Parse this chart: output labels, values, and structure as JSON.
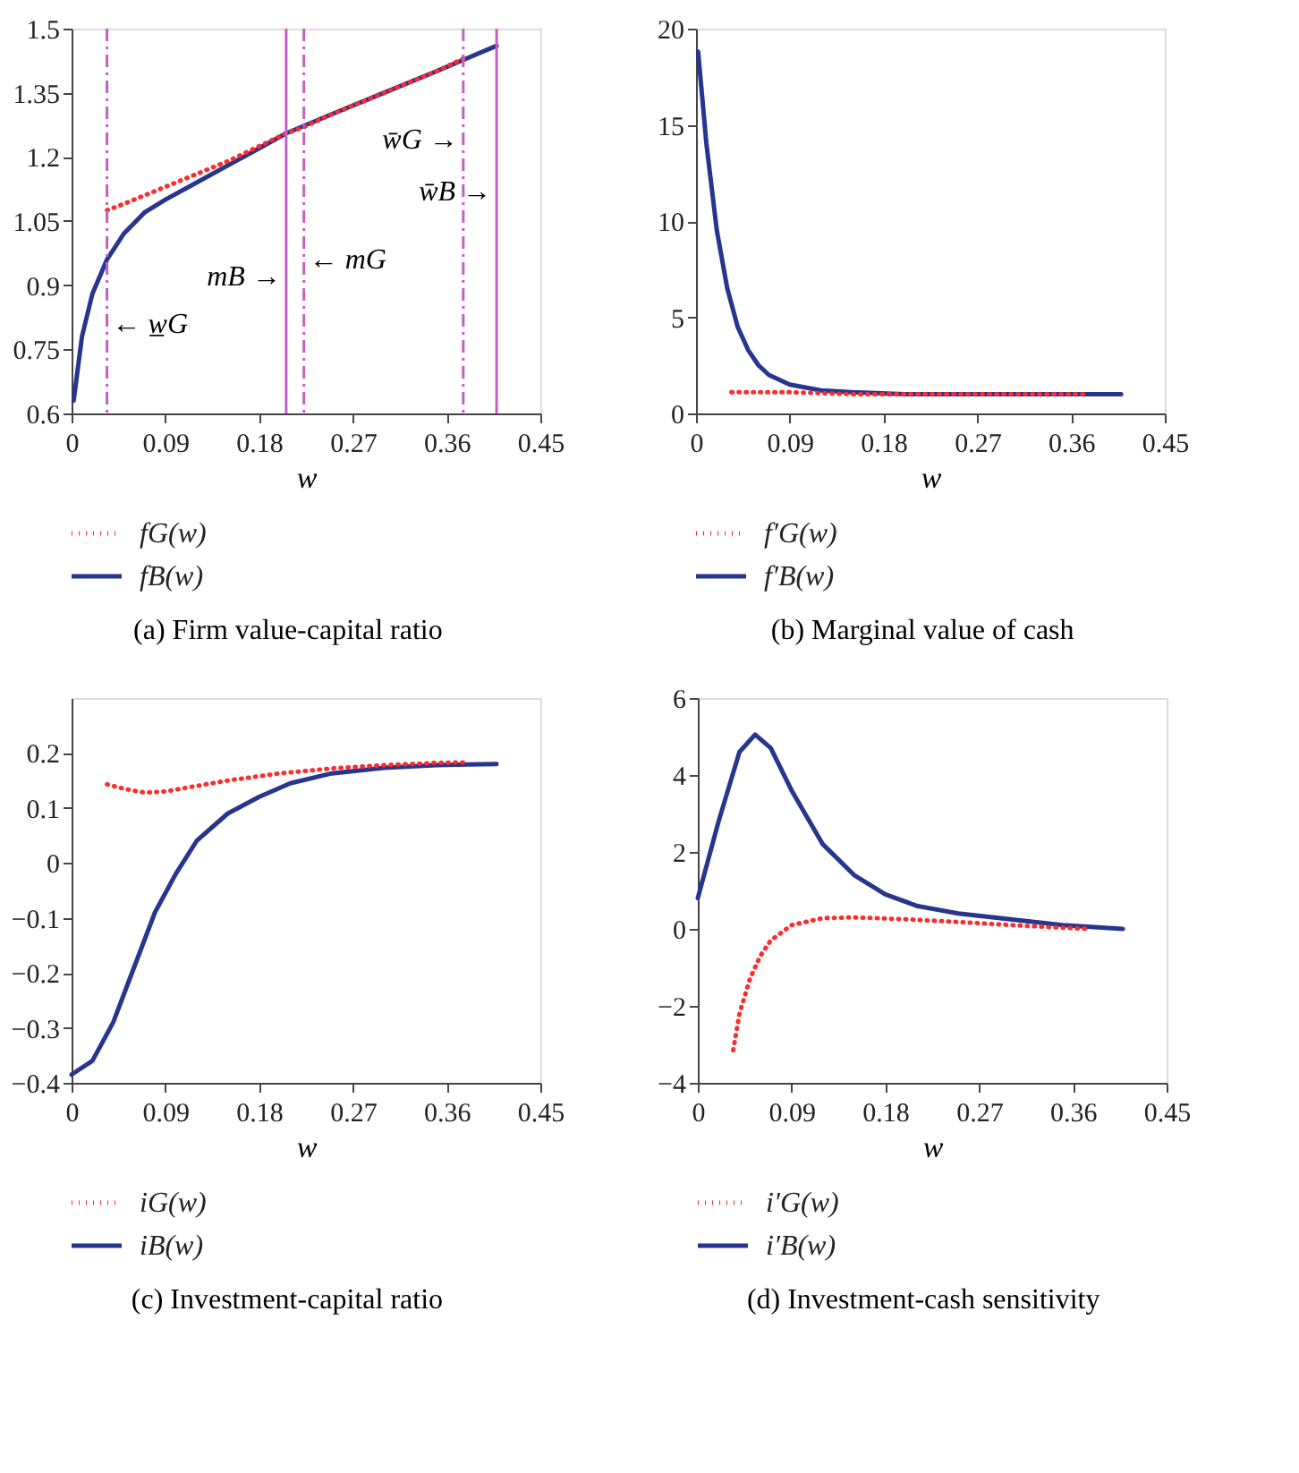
{
  "chart_data": [
    {
      "type": "line",
      "title": "(a)  Firm value-capital ratio",
      "xlabel": "w",
      "xlim": [
        0,
        0.45
      ],
      "xticks": [
        0,
        0.09,
        0.18,
        0.27,
        0.36,
        0.45
      ],
      "ylim": [
        0.6,
        1.5
      ],
      "yticks": [
        0.6,
        0.75,
        0.9,
        1.05,
        1.2,
        1.35,
        1.5
      ],
      "grid": false,
      "legend": "bottom left",
      "marker": "none",
      "series": [
        {
          "name": "fG(w)",
          "color": "#ff2a2a",
          "line_style": "dotted",
          "x": [
            0.034,
            0.05,
            0.07,
            0.09,
            0.12,
            0.15,
            0.18,
            0.206,
            0.223,
            0.25,
            0.3,
            0.35,
            0.376
          ],
          "values": [
            1.075,
            1.09,
            1.11,
            1.13,
            1.16,
            1.19,
            1.225,
            1.255,
            1.27,
            1.3,
            1.35,
            1.4,
            1.43
          ]
        },
        {
          "name": "fB(w)",
          "color": "#27358f",
          "line_style": "solid",
          "x": [
            0.002,
            0.01,
            0.02,
            0.034,
            0.05,
            0.07,
            0.09,
            0.12,
            0.15,
            0.18,
            0.206,
            0.25,
            0.3,
            0.35,
            0.408
          ],
          "values": [
            0.63,
            0.78,
            0.88,
            0.96,
            1.02,
            1.07,
            1.1,
            1.14,
            1.18,
            1.22,
            1.255,
            1.3,
            1.35,
            1.4,
            1.46
          ]
        }
      ],
      "ref_lines": [
        {
          "axis": "x",
          "value": 0.034,
          "color": "#c45fc4",
          "line_style": "dashed"
        },
        {
          "axis": "x",
          "value": 0.206,
          "color": "#c45fc4",
          "line_style": "solid"
        },
        {
          "axis": "x",
          "value": 0.223,
          "color": "#c45fc4",
          "line_style": "dashed"
        },
        {
          "axis": "x",
          "value": 0.376,
          "color": "#c45fc4",
          "line_style": "dashed"
        },
        {
          "axis": "x",
          "value": 0.408,
          "color": "#c45fc4",
          "line_style": "solid"
        }
      ],
      "annotations": [
        {
          "text": "← w̲G",
          "x": 0.034,
          "y": 0.81
        },
        {
          "text": "mB →",
          "x": 0.206,
          "y": 0.92
        },
        {
          "text": "← mG",
          "x": 0.223,
          "y": 0.96
        },
        {
          "text": "w̄G →",
          "x": 0.376,
          "y": 1.24
        },
        {
          "text": "w̄B →",
          "x": 0.408,
          "y": 1.12
        }
      ]
    },
    {
      "type": "line",
      "title": "(b)  Marginal value of cash",
      "xlabel": "w",
      "xlim": [
        0,
        0.45
      ],
      "xticks": [
        0,
        0.09,
        0.18,
        0.27,
        0.36,
        0.45
      ],
      "ylim": [
        0,
        20
      ],
      "yticks": [
        0,
        5,
        10,
        15,
        20
      ],
      "grid": false,
      "legend": "bottom left",
      "marker": "none",
      "series": [
        {
          "name": "f′G(w)",
          "color": "#ff2a2a",
          "line_style": "dotted",
          "x": [
            0.034,
            0.09,
            0.15,
            0.2,
            0.3,
            0.376
          ],
          "values": [
            1.1,
            1.1,
            1.0,
            1.0,
            1.0,
            1.0
          ]
        },
        {
          "name": "f′B(w)",
          "color": "#27358f",
          "line_style": "solid",
          "x": [
            0.002,
            0.01,
            0.02,
            0.03,
            0.04,
            0.05,
            0.06,
            0.07,
            0.09,
            0.12,
            0.15,
            0.2,
            0.3,
            0.408
          ],
          "values": [
            18.8,
            14,
            9.5,
            6.5,
            4.5,
            3.3,
            2.5,
            2.0,
            1.5,
            1.2,
            1.1,
            1.0,
            1.0,
            1.0
          ]
        }
      ]
    },
    {
      "type": "line",
      "title": "(c)  Investment-capital ratio",
      "xlabel": "w",
      "xlim": [
        0,
        0.45
      ],
      "xticks": [
        0,
        0.09,
        0.18,
        0.27,
        0.36,
        0.45
      ],
      "ylim": [
        -0.4,
        0.3
      ],
      "yticks": [
        -0.4,
        -0.3,
        -0.2,
        -0.1,
        0,
        0.1,
        0.2
      ],
      "grid": false,
      "legend": "bottom left",
      "marker": "none",
      "series": [
        {
          "name": "iG(w)",
          "color": "#ff2a2a",
          "line_style": "dotted",
          "x": [
            0.034,
            0.05,
            0.07,
            0.09,
            0.12,
            0.15,
            0.2,
            0.25,
            0.3,
            0.35,
            0.376
          ],
          "values": [
            0.143,
            0.135,
            0.128,
            0.13,
            0.14,
            0.15,
            0.163,
            0.172,
            0.178,
            0.182,
            0.183
          ]
        },
        {
          "name": "iB(w)",
          "color": "#27358f",
          "line_style": "solid",
          "x": [
            0,
            0.02,
            0.04,
            0.06,
            0.08,
            0.1,
            0.12,
            0.15,
            0.18,
            0.21,
            0.25,
            0.3,
            0.35,
            0.408
          ],
          "values": [
            -0.385,
            -0.36,
            -0.29,
            -0.19,
            -0.09,
            -0.02,
            0.04,
            0.09,
            0.12,
            0.145,
            0.163,
            0.173,
            0.178,
            0.18
          ]
        }
      ]
    },
    {
      "type": "line",
      "title": "(d)  Investment-cash sensitivity",
      "xlabel": "w",
      "xlim": [
        0,
        0.45
      ],
      "xticks": [
        0,
        0.09,
        0.18,
        0.27,
        0.36,
        0.45
      ],
      "ylim": [
        -4,
        6
      ],
      "yticks": [
        -4,
        -2,
        0,
        2,
        4,
        6
      ],
      "grid": false,
      "legend": "bottom left",
      "marker": "none",
      "series": [
        {
          "name": "i′G(w)",
          "color": "#ff2a2a",
          "line_style": "dotted",
          "x": [
            0.034,
            0.04,
            0.05,
            0.06,
            0.07,
            0.09,
            0.12,
            0.15,
            0.2,
            0.25,
            0.3,
            0.35,
            0.376
          ],
          "values": [
            -3.15,
            -2.2,
            -1.3,
            -0.7,
            -0.3,
            0.1,
            0.28,
            0.3,
            0.25,
            0.18,
            0.1,
            0.03,
            0.0
          ]
        },
        {
          "name": "i′B(w)",
          "color": "#27358f",
          "line_style": "solid",
          "x": [
            0,
            0.02,
            0.04,
            0.055,
            0.07,
            0.09,
            0.12,
            0.15,
            0.18,
            0.21,
            0.25,
            0.3,
            0.35,
            0.408
          ],
          "values": [
            0.8,
            2.8,
            4.6,
            5.05,
            4.7,
            3.6,
            2.2,
            1.4,
            0.9,
            0.6,
            0.4,
            0.25,
            0.1,
            0.0
          ]
        }
      ]
    }
  ]
}
